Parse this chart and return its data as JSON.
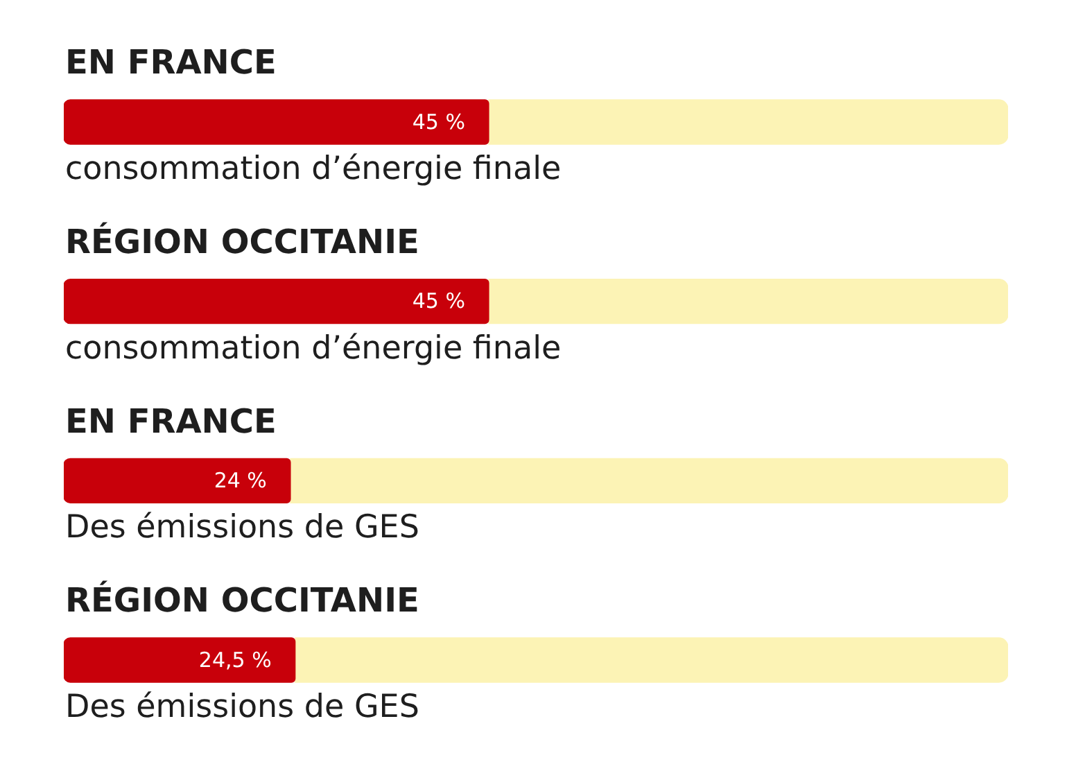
{
  "chart_data": {
    "type": "bar",
    "orientation": "horizontal",
    "stacked": true,
    "tick_labels": "y",
    "categories": [
      "EN FRANCE",
      "RÉGION OCCITANIE",
      "EN FRANCE",
      "RÉGION OCCITANIE"
    ],
    "series": [
      {
        "color": "#c8000a",
        "values": [
          45,
          45,
          24,
          24.5
        ],
        "value_labels": [
          "45 %",
          "45 %",
          "24 %",
          "24,5 %"
        ]
      },
      {
        "color": "#fcf3b5",
        "values": [
          55,
          55,
          76,
          75.5
        ]
      }
    ],
    "annotations": [
      "consommation d’énergie finale",
      "consommation d’énergie finale",
      "Des émissions de GES",
      "Des émissions de GES"
    ]
  }
}
